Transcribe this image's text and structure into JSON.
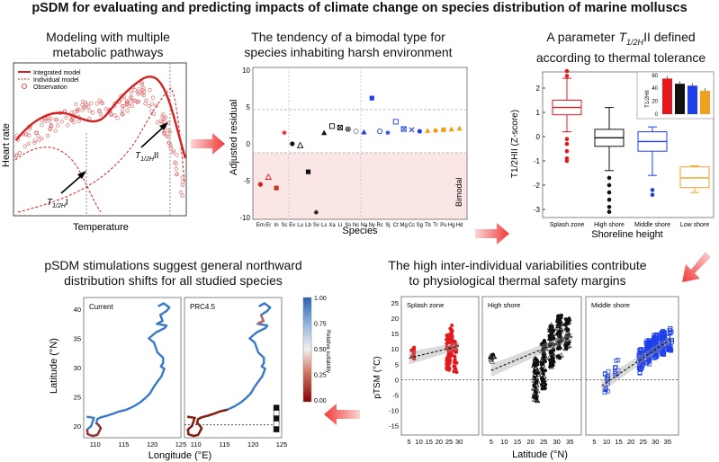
{
  "title": "pSDM for evaluating and predicting impacts of climate change on species distribution of marine molluscs",
  "panels": {
    "a": {
      "title_line1": "Modeling with multiple",
      "title_line2": "metabolic pathways",
      "legend": [
        "Integrated model",
        "Individual model",
        "Observation"
      ],
      "ylabel": "Heart rate",
      "xlabel": "Temperature",
      "label_t_low": "T",
      "label_t_low_sub": "1/2H",
      "label_t_low_suffix": "I",
      "label_t_high": "T",
      "label_t_high_sub": "1/2H",
      "label_t_high_suffix": "II"
    },
    "b": {
      "title_line1": "The tendency of a bimodal type for",
      "title_line2": "species inhabiting harsh environment",
      "ylabel": "Adjusted residual",
      "xlabel": "Species",
      "bimodal_label": "Bimodal",
      "yticks": [
        "10",
        "5",
        "0",
        "-5",
        "-10"
      ],
      "species": [
        "Em",
        "Er",
        "In",
        "Sc",
        "Ev",
        "Lu",
        "Lb",
        "Sv",
        "Ls",
        "Xa",
        "Li",
        "Ss",
        "Nc",
        "Na",
        "Ny",
        "Rc",
        "Sj",
        "Ct",
        "Mg",
        "Cc",
        "Sg",
        "Tb",
        "Tr",
        "Pu",
        "Hg",
        "Hd"
      ]
    },
    "c": {
      "title_line1": "A parameter",
      "title_sym": "T",
      "title_sub": "1/2H",
      "title_suffix": "II defined",
      "title_line2": "according to thermal tolerance",
      "ylabel": "T1/2HII (Z-score)",
      "xlabel": "Shoreline height",
      "groups": [
        "Splash zone",
        "High shore",
        "Middle shore",
        "Low shore"
      ],
      "yticks": [
        "2",
        "1",
        "0",
        "-1",
        "-2",
        "-3"
      ],
      "inset_yticks": [
        "60",
        "40",
        "20",
        "0"
      ],
      "inset_ylabel": "T1/2HII",
      "colors": [
        "#e31a1c",
        "#111111",
        "#1f3fe8",
        "#f0a020"
      ]
    },
    "d": {
      "title_line1": "The high inter-individual variabilities contribute",
      "title_line2": "to physiological thermal safety margins",
      "ylabel": "pTSM (°C)",
      "xlabel": "Latitude (°N)",
      "subpanels": [
        "Splash zone",
        "High shore",
        "Middle shore"
      ],
      "yticks": [
        "25",
        "20",
        "15",
        "10",
        "5",
        "0",
        "-5",
        "-10",
        "-15"
      ],
      "xticks": [
        "5",
        "10",
        "15",
        "20",
        "25",
        "30",
        "35"
      ]
    },
    "e": {
      "title_line1": "pSDM stimulations suggest general northward",
      "title_line2": "distribution shifts for all studied species",
      "ylabel": "Latitude (°N)",
      "xlabel": "Longitude (°E)",
      "maps": [
        "Current",
        "PRC4.5"
      ],
      "yticks": [
        "40",
        "35",
        "30",
        "25",
        "20"
      ],
      "xticks": [
        "110",
        "115",
        "120",
        "125"
      ],
      "colorbar_label": "Relative suitability",
      "colorbar_ticks": [
        "1.00",
        "0.75",
        "0.50",
        "0.25",
        "0.00"
      ]
    }
  },
  "colors": {
    "arrow": "#f25050",
    "red": "#e31a1c",
    "blue": "#1f3fe8",
    "orange": "#f0a020",
    "black": "#111111"
  }
}
